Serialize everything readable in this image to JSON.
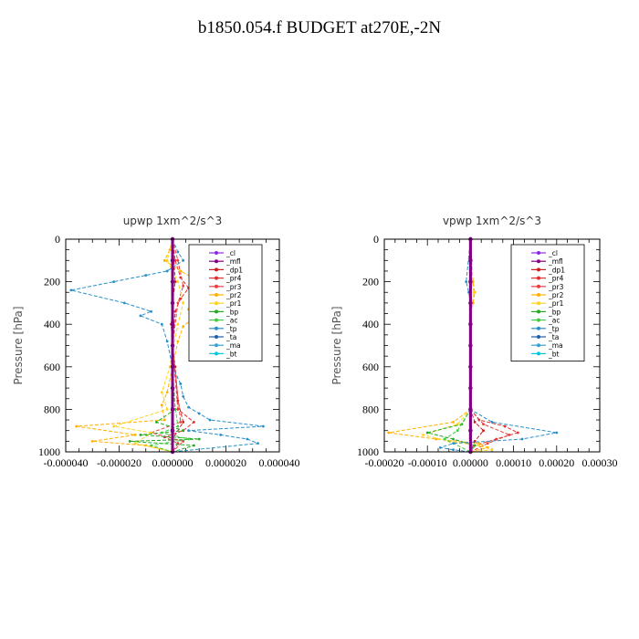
{
  "page": {
    "title": "b1850.054.f  BUDGET at270E,-2N"
  },
  "chart_data": [
    {
      "type": "line",
      "title": "upwp   1xm^2/s^3",
      "ylabel": "Pressure [hPa]",
      "xlabel": "",
      "xlim": [
        -4e-05,
        4e-05
      ],
      "ylim": [
        1000,
        0
      ],
      "x_ticks": [
        -4e-05,
        -2e-05,
        0,
        2e-05,
        4e-05
      ],
      "x_tick_labels": [
        "-0.000040",
        "-0.000020",
        "0.000000",
        "0.000020",
        "0.000040"
      ],
      "y_ticks": [
        0,
        200,
        400,
        600,
        800,
        1000
      ],
      "y_tick_labels": [
        "0",
        "200",
        "400",
        "600",
        "800",
        "1000"
      ],
      "legend_position": "top-right",
      "series": [
        {
          "name": "_cl",
          "color": "#8a2be2",
          "x": [
            0,
            0,
            0,
            0,
            0,
            0,
            0,
            0,
            0,
            0,
            0
          ],
          "y": [
            0,
            100,
            200,
            300,
            400,
            500,
            600,
            700,
            800,
            900,
            1000
          ]
        },
        {
          "name": "_mfl",
          "color": "#800080",
          "x": [
            0,
            0,
            0,
            0,
            0,
            0,
            0,
            0,
            0,
            0,
            0
          ],
          "y": [
            0,
            100,
            200,
            300,
            400,
            500,
            600,
            700,
            800,
            900,
            1000
          ]
        },
        {
          "name": "_dp1",
          "color": "#c81e1e",
          "x": [
            0,
            5e-07,
            1e-06,
            0,
            -5e-07,
            0,
            1e-06,
            2e-06,
            4e-06,
            0,
            0
          ],
          "y": [
            0,
            100,
            200,
            300,
            400,
            500,
            600,
            760,
            860,
            940,
            1000
          ]
        },
        {
          "name": "_pr4",
          "color": "#e03030",
          "x": [
            0,
            1e-06,
            3e-06,
            6e-06,
            3e-06,
            1e-06,
            0,
            2e-06,
            8e-06,
            4e-06,
            -3e-06,
            2e-06,
            0
          ],
          "y": [
            0,
            100,
            180,
            230,
            280,
            340,
            500,
            800,
            860,
            900,
            930,
            960,
            1000
          ]
        },
        {
          "name": "_pr3",
          "color": "#e84040",
          "x": [
            0,
            2e-06,
            4e-06,
            2e-06,
            0,
            3e-06,
            -8e-06,
            4e-06,
            0
          ],
          "y": [
            0,
            100,
            220,
            300,
            500,
            860,
            910,
            950,
            1000
          ]
        },
        {
          "name": "_pr2",
          "color": "#ffb000",
          "x": [
            0,
            -1e-06,
            -3e-06,
            3e-06,
            1.6e-05,
            6e-06,
            8e-06,
            4e-06,
            2e-06,
            0,
            -2e-06,
            -4e-06,
            -3e-06,
            -3.6e-05,
            -1.4e-05,
            -3e-05,
            -1e-05,
            0
          ],
          "y": [
            0,
            50,
            100,
            150,
            240,
            330,
            370,
            410,
            480,
            600,
            720,
            780,
            850,
            880,
            920,
            950,
            970,
            1000
          ]
        },
        {
          "name": "_pr1",
          "color": "#ffd21e",
          "x": [
            0,
            -2e-06,
            2e-06,
            4e-06,
            2e-06,
            -1e-06,
            -4e-06,
            -2e-06,
            -2.2e-05,
            -8e-06,
            -1.4e-05,
            0
          ],
          "y": [
            0,
            100,
            200,
            300,
            400,
            600,
            720,
            800,
            880,
            910,
            960,
            1000
          ]
        },
        {
          "name": "_bp",
          "color": "#22aa22",
          "x": [
            0,
            0,
            0,
            1e-06,
            -6e-06,
            4e-06,
            -1.2e-05,
            1e-05,
            -1.6e-05,
            8e-06,
            0
          ],
          "y": [
            0,
            200,
            600,
            800,
            860,
            900,
            920,
            940,
            950,
            970,
            1000
          ]
        },
        {
          "name": "_ac",
          "color": "#44cc44",
          "x": [
            0,
            0,
            0,
            2e-06,
            -4e-06,
            6e-06,
            -8e-06,
            0
          ],
          "y": [
            0,
            300,
            700,
            880,
            910,
            940,
            970,
            1000
          ]
        },
        {
          "name": "_tp",
          "color": "#2a8fc8",
          "x": [
            0,
            2e-06,
            4e-06,
            -2e-06,
            -1e-05,
            -2.2e-05,
            -3.8e-05,
            -1.8e-05,
            -8e-06,
            -1.2e-05,
            -4e-06,
            -2e-06,
            0,
            3e-06,
            4e-06,
            6e-06,
            1e-05,
            1.4e-05,
            3.4e-05,
            6e-06,
            1.8e-05,
            2.8e-05,
            3.2e-05,
            0
          ],
          "y": [
            0,
            60,
            100,
            150,
            170,
            200,
            240,
            300,
            340,
            360,
            400,
            480,
            600,
            680,
            740,
            790,
            820,
            850,
            880,
            900,
            920,
            940,
            960,
            1000
          ]
        },
        {
          "name": "_ta",
          "color": "#1f5fa8",
          "x": [
            0,
            0,
            0,
            0,
            0,
            0,
            0,
            0,
            0,
            0,
            0
          ],
          "y": [
            0,
            100,
            200,
            300,
            400,
            500,
            600,
            700,
            800,
            900,
            1000
          ]
        },
        {
          "name": "_ma",
          "color": "#3aa0d0",
          "x": [
            0,
            0,
            0,
            0,
            0,
            0,
            0,
            0,
            0,
            0,
            0
          ],
          "y": [
            0,
            100,
            200,
            300,
            400,
            500,
            600,
            700,
            800,
            900,
            1000
          ]
        },
        {
          "name": "_bt",
          "color": "#00c8e0",
          "x": [
            0,
            0,
            0,
            0,
            0,
            0,
            0,
            0,
            0,
            0,
            0
          ],
          "y": [
            0,
            100,
            200,
            300,
            400,
            500,
            600,
            700,
            800,
            900,
            1000
          ]
        }
      ]
    },
    {
      "type": "line",
      "title": "vpwp   1xm^2/s^3",
      "ylabel": "Pressure [hPa]",
      "xlabel": "",
      "xlim": [
        -0.0002,
        0.0003
      ],
      "ylim": [
        1000,
        0
      ],
      "x_ticks": [
        -0.0002,
        -0.0001,
        0,
        0.0001,
        0.0002,
        0.0003
      ],
      "x_tick_labels": [
        "-0.00020",
        "-0.00010",
        "0.00000",
        "0.00010",
        "0.00020",
        "0.00030"
      ],
      "y_ticks": [
        0,
        200,
        400,
        600,
        800,
        1000
      ],
      "y_tick_labels": [
        "0",
        "200",
        "400",
        "600",
        "800",
        "1000"
      ],
      "legend_position": "top-right",
      "series": [
        {
          "name": "_cl",
          "color": "#8a2be2",
          "x": [
            0,
            0,
            0,
            0,
            0,
            0,
            0,
            0,
            0,
            0,
            0
          ],
          "y": [
            0,
            100,
            200,
            300,
            400,
            500,
            600,
            700,
            800,
            900,
            1000
          ]
        },
        {
          "name": "_mfl",
          "color": "#800080",
          "x": [
            0,
            0,
            0,
            0,
            0,
            0,
            0,
            0,
            0,
            0,
            0
          ],
          "y": [
            0,
            100,
            200,
            300,
            400,
            500,
            600,
            700,
            800,
            900,
            1000
          ]
        },
        {
          "name": "_dp1",
          "color": "#c81e1e",
          "x": [
            0,
            0,
            0,
            0,
            0,
            1e-05,
            3e-05,
            1e-05,
            0
          ],
          "y": [
            0,
            200,
            400,
            600,
            800,
            860,
            900,
            950,
            1000
          ]
        },
        {
          "name": "_pr4",
          "color": "#e03030",
          "x": [
            0,
            0,
            0,
            0,
            2e-05,
            8e-05,
            0.00011,
            6e-05,
            1e-05,
            0
          ],
          "y": [
            0,
            200,
            400,
            800,
            850,
            880,
            910,
            940,
            970,
            1000
          ]
        },
        {
          "name": "_pr3",
          "color": "#e84040",
          "x": [
            0,
            0,
            0,
            3e-05,
            9e-05,
            4e-05,
            0
          ],
          "y": [
            0,
            400,
            800,
            870,
            920,
            960,
            1000
          ]
        },
        {
          "name": "_pr2",
          "color": "#ffb000",
          "x": [
            0,
            6e-06,
            1e-05,
            6e-06,
            0,
            0,
            -4e-05,
            -0.00019,
            -8e-05,
            2e-05,
            4e-05,
            0
          ],
          "y": [
            0,
            200,
            250,
            300,
            350,
            800,
            860,
            910,
            940,
            960,
            980,
            1000
          ]
        },
        {
          "name": "_pr1",
          "color": "#ffd21e",
          "x": [
            0,
            4e-06,
            8e-06,
            0,
            0,
            -3e-05,
            -0.00011,
            -5e-05,
            2e-05,
            5e-05,
            0
          ],
          "y": [
            0,
            200,
            250,
            350,
            800,
            870,
            920,
            950,
            970,
            990,
            1000
          ]
        },
        {
          "name": "_bp",
          "color": "#22aa22",
          "x": [
            0,
            0,
            0,
            -2e-05,
            -0.0001,
            -4e-05,
            1e-05,
            0
          ],
          "y": [
            0,
            400,
            800,
            870,
            910,
            940,
            970,
            1000
          ]
        },
        {
          "name": "_ac",
          "color": "#44cc44",
          "x": [
            0,
            0,
            0,
            -3e-05,
            -6e-05,
            0
          ],
          "y": [
            0,
            400,
            800,
            900,
            940,
            1000
          ]
        },
        {
          "name": "_tp",
          "color": "#2a8fc8",
          "x": [
            0,
            -1e-05,
            -4e-06,
            0,
            0,
            5e-05,
            0.0002,
            0.00012,
            -4e-05,
            -7e-05,
            -4e-05,
            0
          ],
          "y": [
            0,
            200,
            250,
            300,
            800,
            860,
            910,
            940,
            960,
            980,
            990,
            1000
          ]
        },
        {
          "name": "_ta",
          "color": "#1f5fa8",
          "x": [
            0,
            0,
            0,
            0,
            0,
            0,
            0,
            0,
            0,
            0,
            0
          ],
          "y": [
            0,
            100,
            200,
            300,
            400,
            500,
            600,
            700,
            800,
            900,
            1000
          ]
        },
        {
          "name": "_ma",
          "color": "#3aa0d0",
          "x": [
            0,
            0,
            0,
            0,
            0,
            0,
            0,
            0,
            0,
            0,
            0
          ],
          "y": [
            0,
            100,
            200,
            300,
            400,
            500,
            600,
            700,
            800,
            900,
            1000
          ]
        },
        {
          "name": "_bt",
          "color": "#00c8e0",
          "x": [
            0,
            0,
            0,
            0,
            0,
            0,
            0,
            0,
            0,
            0,
            0
          ],
          "y": [
            0,
            100,
            200,
            300,
            400,
            500,
            600,
            700,
            800,
            900,
            1000
          ]
        }
      ]
    }
  ]
}
